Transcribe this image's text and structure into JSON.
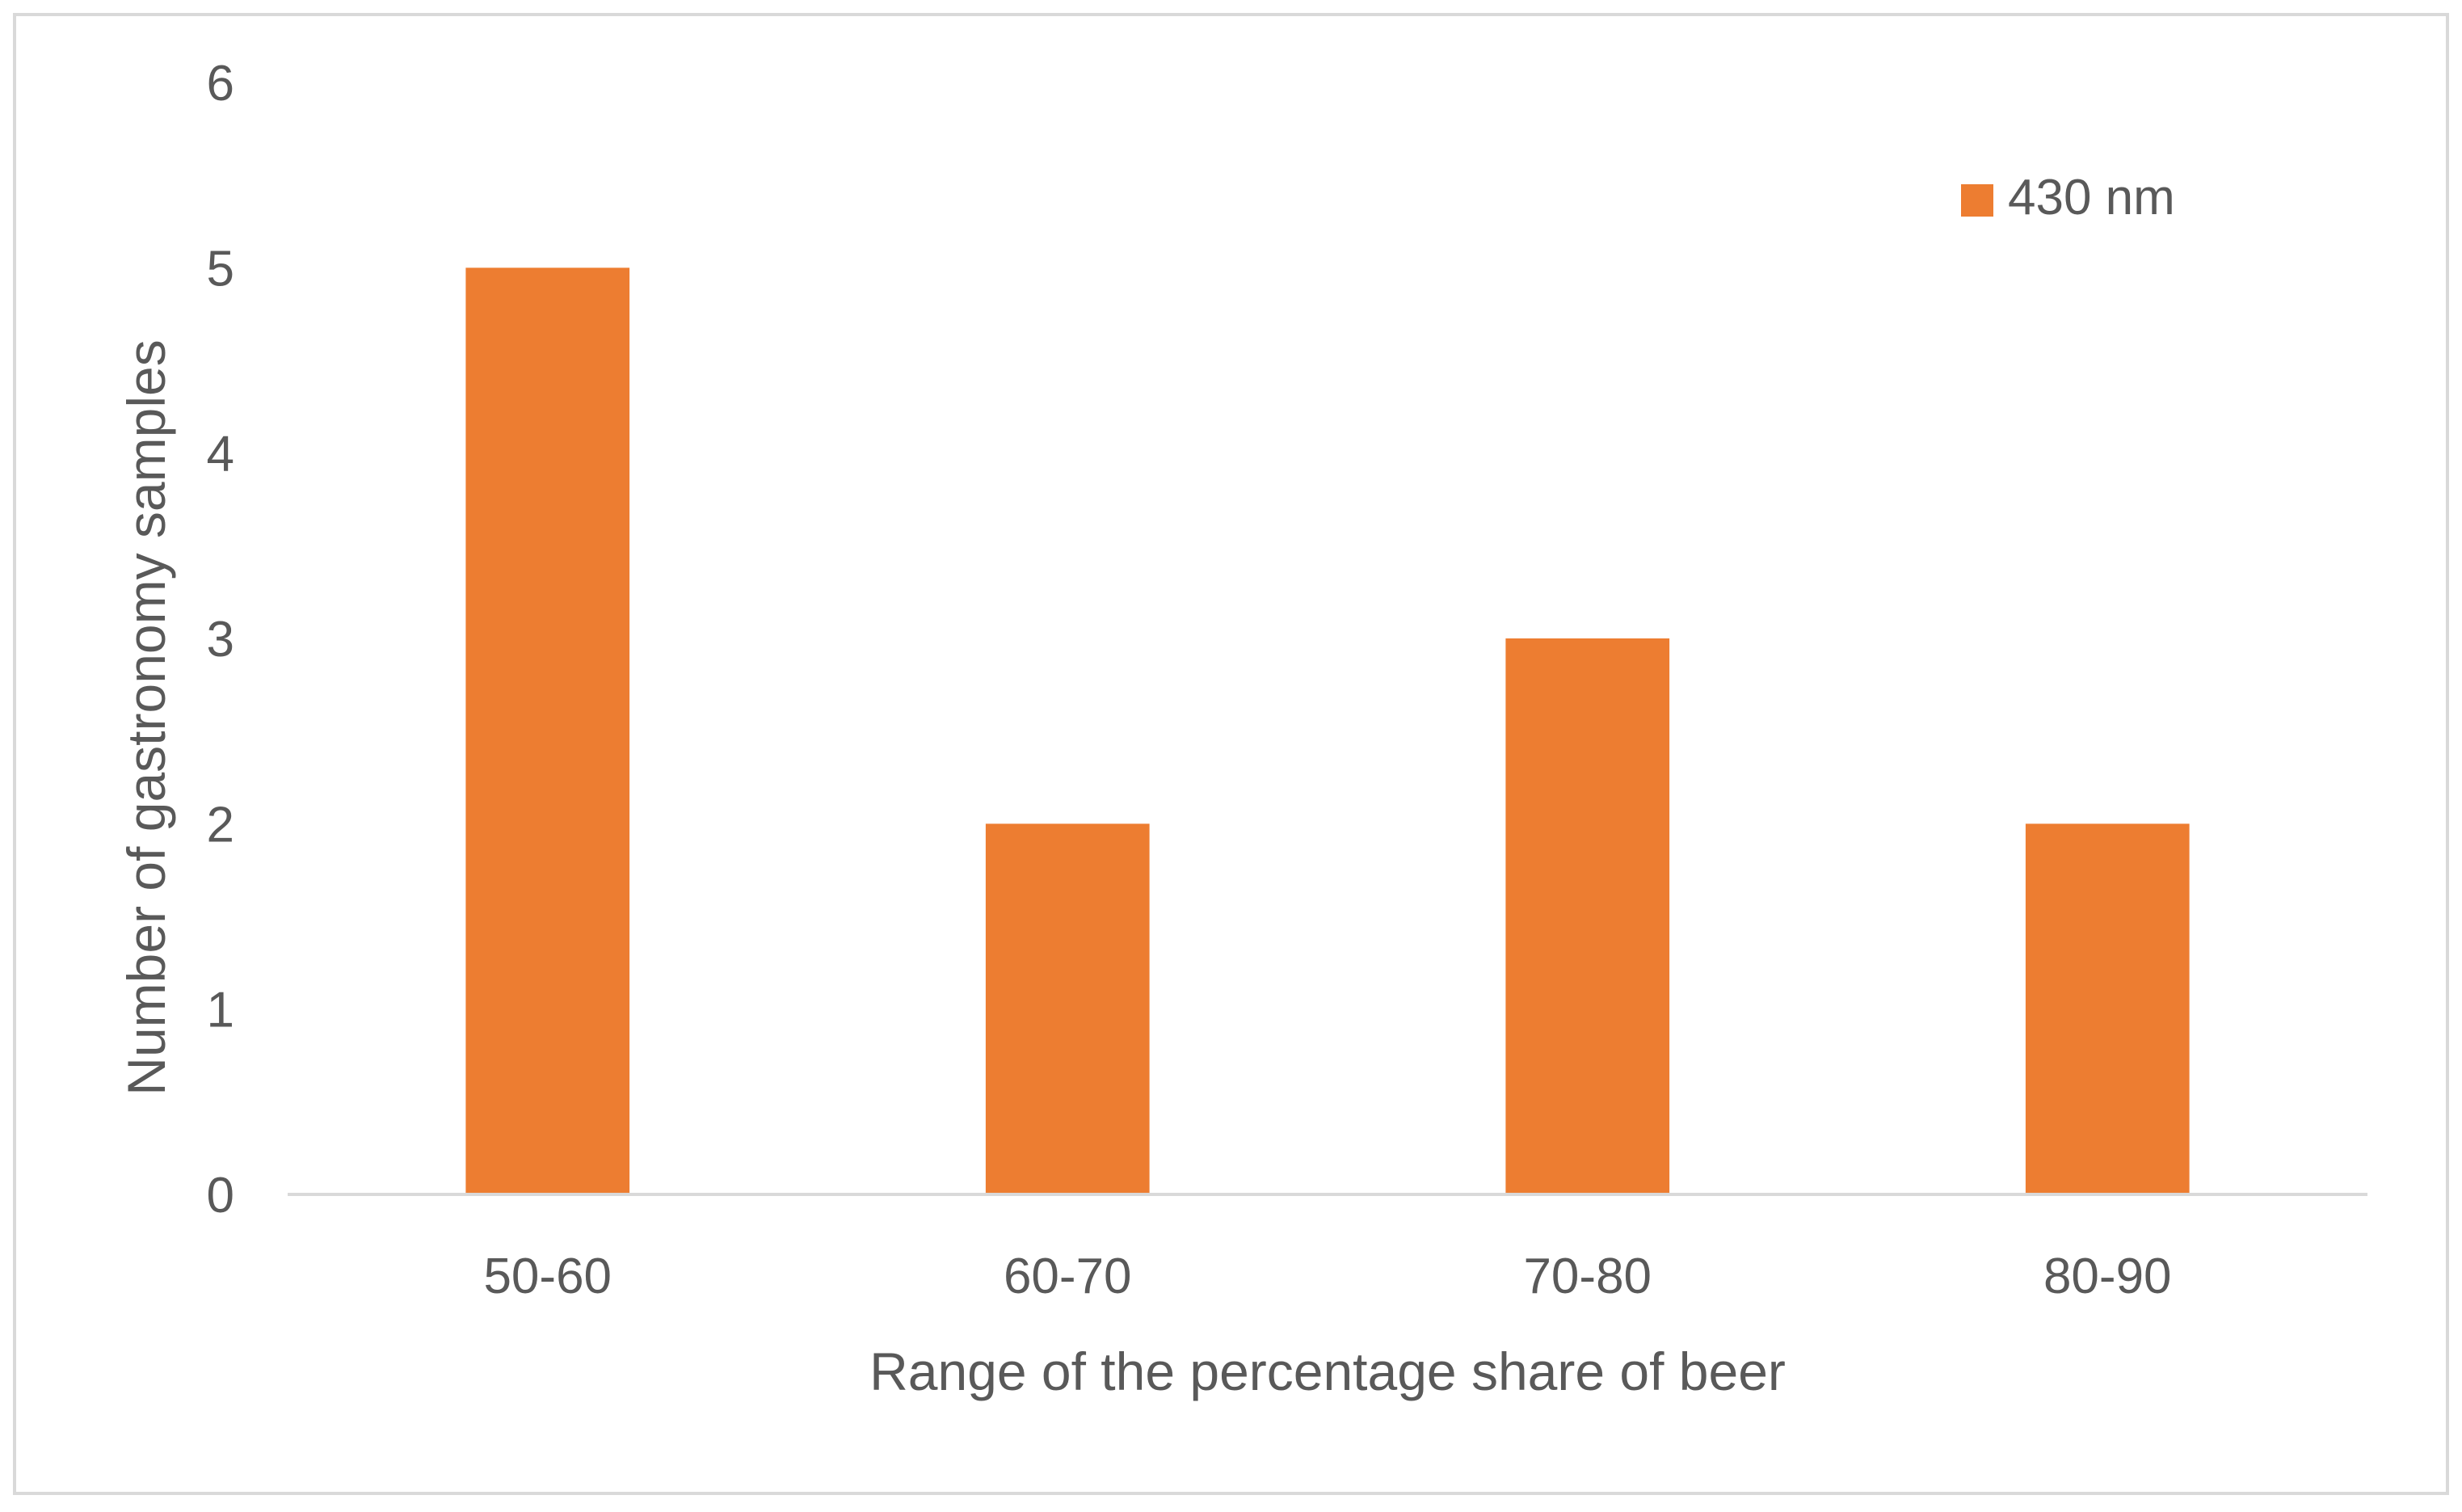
{
  "chart_data": {
    "type": "bar",
    "title": "",
    "xlabel": "Range of the percentage share of beer",
    "ylabel": "Number of gastronomy samples",
    "categories": [
      "50-60",
      "60-70",
      "70-80",
      "80-90"
    ],
    "series": [
      {
        "name": "430 nm",
        "values": [
          5,
          2,
          3,
          2
        ],
        "color": "#ED7D31"
      }
    ],
    "ylim": [
      0,
      6
    ],
    "yticks": [
      "0",
      "1",
      "2",
      "3",
      "4",
      "5",
      "6"
    ],
    "grid": false,
    "legend": "top-right"
  },
  "colors": {
    "bar": "#ED7D31",
    "axis": "#D9D9D9",
    "text": "#595959",
    "border": "#D9D9D9"
  }
}
